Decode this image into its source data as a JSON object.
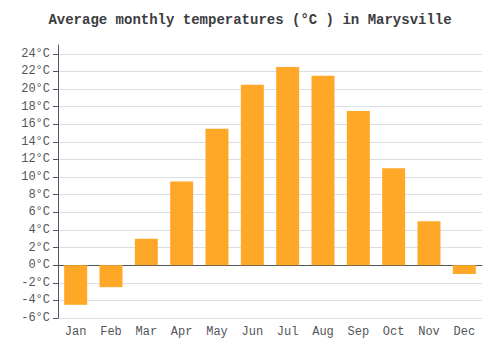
{
  "chart_data": {
    "type": "bar",
    "title": "Average monthly temperatures (°C ) in Marysville",
    "categories": [
      "Jan",
      "Feb",
      "Mar",
      "Apr",
      "May",
      "Jun",
      "Jul",
      "Aug",
      "Sep",
      "Oct",
      "Nov",
      "Dec"
    ],
    "values": [
      -4.5,
      -2.5,
      3.0,
      9.5,
      15.5,
      20.5,
      22.5,
      21.5,
      17.5,
      11.0,
      5.0,
      -1.0
    ],
    "color": "#FFA726",
    "ylim": [
      -6,
      25
    ],
    "yticks": [
      {
        "value": -6,
        "label": "-6°C"
      },
      {
        "value": -4,
        "label": "-4°C"
      },
      {
        "value": -2,
        "label": "-2°C"
      },
      {
        "value": 0,
        "label": "0°C"
      },
      {
        "value": 2,
        "label": "2°C"
      },
      {
        "value": 4,
        "label": "4°C"
      },
      {
        "value": 6,
        "label": "6°C"
      },
      {
        "value": 8,
        "label": "8°C"
      },
      {
        "value": 10,
        "label": "10°C"
      },
      {
        "value": 12,
        "label": "12°C"
      },
      {
        "value": 14,
        "label": "14°C"
      },
      {
        "value": 16,
        "label": "16°C"
      },
      {
        "value": 18,
        "label": "18°C"
      },
      {
        "value": 20,
        "label": "20°C"
      },
      {
        "value": 22,
        "label": "22°C"
      },
      {
        "value": 24,
        "label": "24°C"
      }
    ],
    "grid": true
  }
}
